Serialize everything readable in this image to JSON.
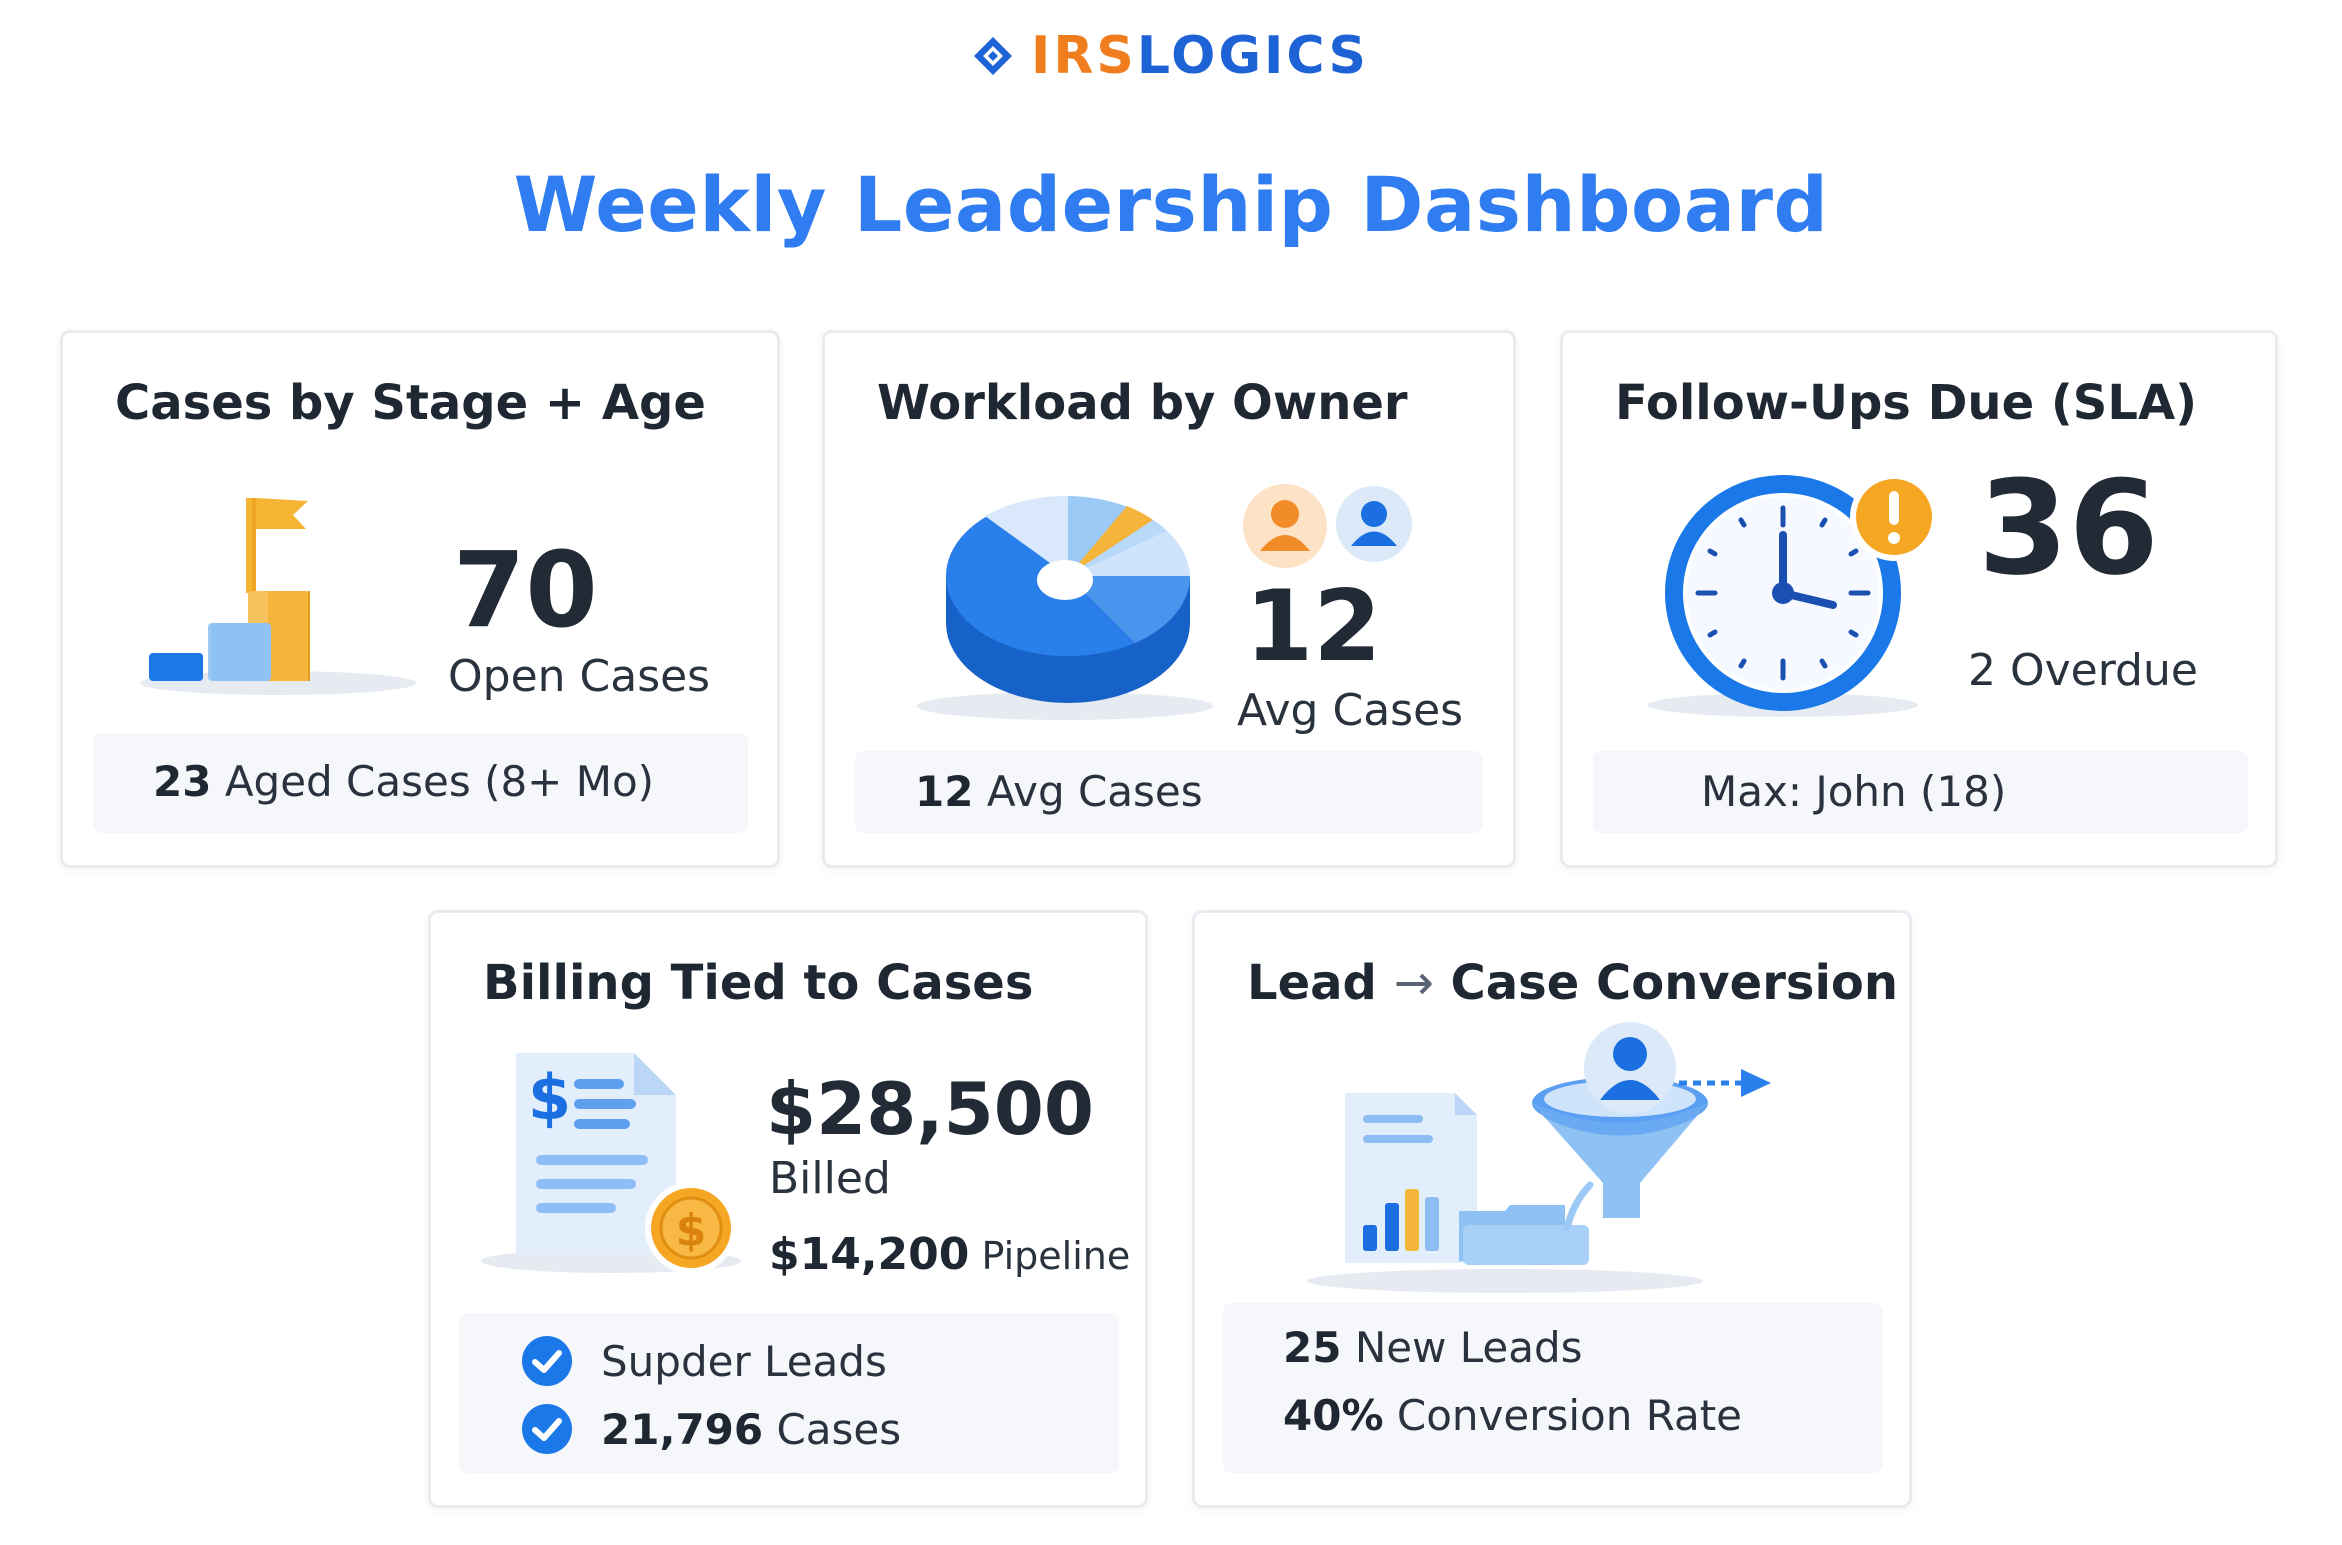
{
  "brand": {
    "name_a": "IRS",
    "name_b": "LOGICS",
    "icon": "diamond-logo-icon",
    "colors": {
      "orange": "#f07d1e",
      "blue": "#1d63d6"
    }
  },
  "page": {
    "title": "Weekly Leadership Dashboard",
    "title_color": "#2f7df0"
  },
  "cards": {
    "cases_stage_age": {
      "title": "Cases by Stage + Age",
      "value": "70",
      "value_label": "Open Cases",
      "footer_value": "23",
      "footer_label": "Aged Cases (8+ Mo)",
      "icon": "bar-chart-flag-icon"
    },
    "workload_owner": {
      "title": "Workload by Owner",
      "value": "12",
      "value_label": "Avg Cases",
      "footer_value": "12",
      "footer_label": "Avg Cases",
      "icons": [
        "pie-chart-icon",
        "user-avatar-orange-icon",
        "user-avatar-blue-icon"
      ]
    },
    "follow_ups": {
      "title": "Follow-Ups Due (SLA)",
      "value": "36",
      "value_label": "2 Overdue",
      "footer_label": "Max: John (18)",
      "icons": [
        "clock-icon",
        "alert-icon"
      ]
    },
    "billing": {
      "title": "Billing Tied to Cases",
      "value": "$28,500",
      "value_label": "Billed",
      "pipeline_value": "$14,200",
      "pipeline_label": "Pipeline",
      "checklist": [
        {
          "value": "",
          "label": "Supder Leads"
        },
        {
          "value": "21,796",
          "label": "Cases"
        }
      ],
      "icons": [
        "invoice-icon",
        "coin-icon",
        "check-circle-icon"
      ]
    },
    "lead_conversion": {
      "title_a": "Lead",
      "title_arrow": "→",
      "title_b": "Case Conversion",
      "lines": [
        {
          "value": "25",
          "label": "New Leads"
        },
        {
          "value": "40%",
          "label": "Conversion Rate"
        }
      ],
      "icons": [
        "report-chart-icon",
        "funnel-icon",
        "user-avatar-icon",
        "arrow-right-icon"
      ]
    }
  },
  "colors": {
    "accent_blue": "#2f7df0",
    "accent_orange": "#f5a623",
    "card_border": "#e8ebf0",
    "footer_bg": "#f5f7fa"
  }
}
